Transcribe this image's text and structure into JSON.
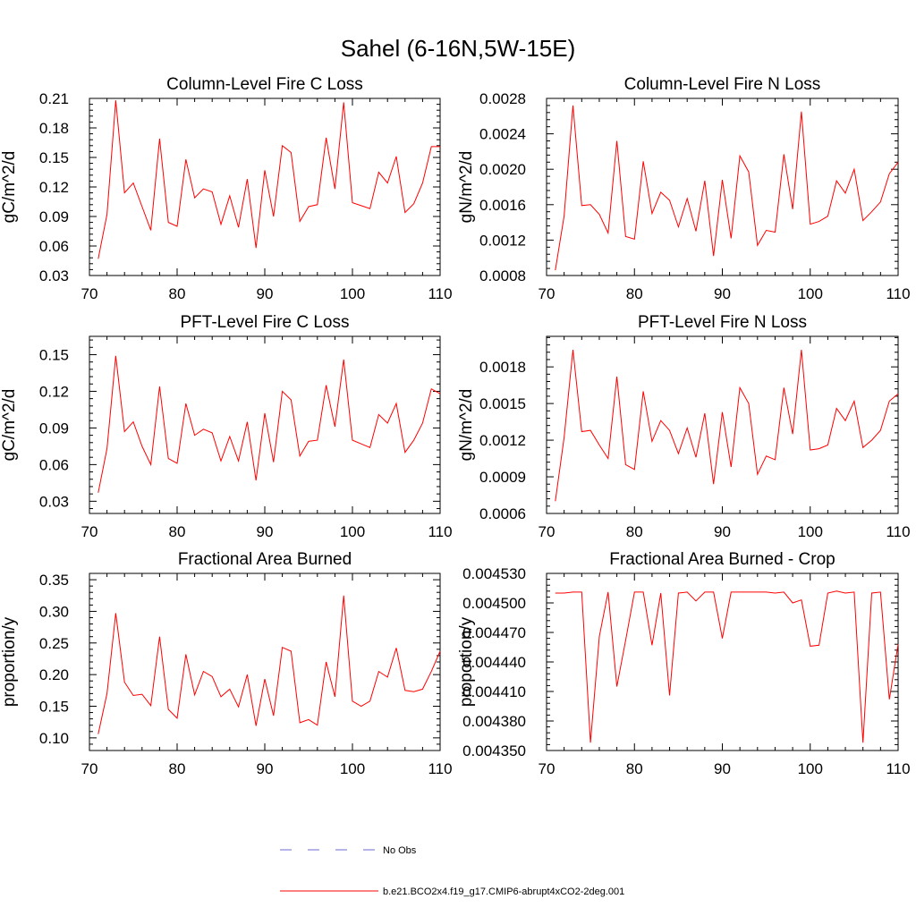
{
  "figure": {
    "title": "Sahel (6-16N,5W-15E)"
  },
  "colors": {
    "series_line": "#ff0000",
    "no_obs_line": "#6b6bd6",
    "axis": "#000000"
  },
  "legend": {
    "entries": [
      {
        "label": "No Obs",
        "style": "dashed",
        "color": "#6b6bd6"
      },
      {
        "label": "b.e21.BCO2x4.f19_g17.CMIP6-abrupt4xCO2-2deg.001",
        "style": "solid",
        "color": "#ff0000"
      }
    ]
  },
  "chart_data": [
    {
      "type": "line",
      "title": "Column-Level Fire C Loss",
      "xlabel": "",
      "ylabel": "gC/m^2/d",
      "xlim": [
        70,
        110
      ],
      "ylim": [
        0.03,
        0.21
      ],
      "xticks": [
        70,
        80,
        90,
        100,
        110
      ],
      "yticks": [
        0.03,
        0.06,
        0.09,
        0.12,
        0.15,
        0.18,
        0.21
      ],
      "ytick_labels": [
        "0.03",
        "0.06",
        "0.09",
        "0.12",
        "0.15",
        "0.18",
        "0.21"
      ],
      "x": [
        71,
        72,
        73,
        74,
        75,
        76,
        77,
        78,
        79,
        80,
        81,
        82,
        83,
        84,
        85,
        86,
        87,
        88,
        89,
        90,
        91,
        92,
        93,
        94,
        95,
        96,
        97,
        98,
        99,
        100,
        101,
        102,
        103,
        104,
        105,
        106,
        107,
        108,
        109,
        110
      ],
      "series": [
        {
          "name": "b.e21.BCO2x4.f19_g17.CMIP6-abrupt4xCO2-2deg.001",
          "values": [
            0.047,
            0.092,
            0.208,
            0.114,
            0.124,
            0.1,
            0.076,
            0.169,
            0.084,
            0.08,
            0.148,
            0.109,
            0.118,
            0.115,
            0.082,
            0.111,
            0.079,
            0.128,
            0.058,
            0.137,
            0.09,
            0.162,
            0.155,
            0.085,
            0.1,
            0.102,
            0.17,
            0.118,
            0.206,
            0.104,
            0.101,
            0.098,
            0.135,
            0.124,
            0.151,
            0.094,
            0.103,
            0.124,
            0.161,
            0.161
          ]
        }
      ]
    },
    {
      "type": "line",
      "title": "Column-Level Fire N Loss",
      "xlabel": "",
      "ylabel": "gN/m^2/d",
      "xlim": [
        70,
        110
      ],
      "ylim": [
        0.0008,
        0.0028
      ],
      "xticks": [
        70,
        80,
        90,
        100,
        110
      ],
      "yticks": [
        0.0008,
        0.0012,
        0.0016,
        0.002,
        0.0024,
        0.0028
      ],
      "ytick_labels": [
        "0.0008",
        "0.0012",
        "0.0016",
        "0.0020",
        "0.0024",
        "0.0028"
      ],
      "x": [
        71,
        72,
        73,
        74,
        75,
        76,
        77,
        78,
        79,
        80,
        81,
        82,
        83,
        84,
        85,
        86,
        87,
        88,
        89,
        90,
        91,
        92,
        93,
        94,
        95,
        96,
        97,
        98,
        99,
        100,
        101,
        102,
        103,
        104,
        105,
        106,
        107,
        108,
        109,
        110
      ],
      "series": [
        {
          "name": "b.e21.BCO2x4.f19_g17.CMIP6-abrupt4xCO2-2deg.001",
          "values": [
            0.00086,
            0.00147,
            0.00272,
            0.00159,
            0.0016,
            0.00149,
            0.00128,
            0.00232,
            0.00124,
            0.00121,
            0.00209,
            0.0015,
            0.00174,
            0.00165,
            0.00135,
            0.00167,
            0.0013,
            0.00187,
            0.00102,
            0.00188,
            0.00122,
            0.00215,
            0.00197,
            0.00114,
            0.00131,
            0.00129,
            0.00217,
            0.00155,
            0.00265,
            0.00138,
            0.00141,
            0.00147,
            0.00187,
            0.00173,
            0.002,
            0.00142,
            0.00152,
            0.00163,
            0.00195,
            0.00208
          ]
        }
      ]
    },
    {
      "type": "line",
      "title": "PFT-Level Fire C Loss",
      "xlabel": "",
      "ylabel": "gC/m^2/d",
      "xlim": [
        70,
        110
      ],
      "ylim": [
        0.02,
        0.165
      ],
      "xticks": [
        70,
        80,
        90,
        100,
        110
      ],
      "yticks": [
        0.03,
        0.06,
        0.09,
        0.12,
        0.15
      ],
      "ytick_labels": [
        "0.03",
        "0.06",
        "0.09",
        "0.12",
        "0.15"
      ],
      "x": [
        71,
        72,
        73,
        74,
        75,
        76,
        77,
        78,
        79,
        80,
        81,
        82,
        83,
        84,
        85,
        86,
        87,
        88,
        89,
        90,
        91,
        92,
        93,
        94,
        95,
        96,
        97,
        98,
        99,
        100,
        101,
        102,
        103,
        104,
        105,
        106,
        107,
        108,
        109,
        110
      ],
      "series": [
        {
          "name": "b.e21.BCO2x4.f19_g17.CMIP6-abrupt4xCO2-2deg.001",
          "values": [
            0.037,
            0.073,
            0.149,
            0.087,
            0.095,
            0.075,
            0.06,
            0.124,
            0.065,
            0.061,
            0.11,
            0.084,
            0.089,
            0.086,
            0.063,
            0.083,
            0.063,
            0.095,
            0.047,
            0.102,
            0.062,
            0.12,
            0.113,
            0.067,
            0.079,
            0.08,
            0.125,
            0.091,
            0.146,
            0.08,
            0.077,
            0.074,
            0.101,
            0.094,
            0.11,
            0.07,
            0.08,
            0.094,
            0.122,
            0.118
          ]
        }
      ]
    },
    {
      "type": "line",
      "title": "PFT-Level Fire N Loss",
      "xlabel": "",
      "ylabel": "gN/m^2/d",
      "xlim": [
        70,
        110
      ],
      "ylim": [
        0.0006,
        0.00205
      ],
      "xticks": [
        70,
        80,
        90,
        100,
        110
      ],
      "yticks": [
        0.0006,
        0.0009,
        0.0012,
        0.0015,
        0.0018
      ],
      "ytick_labels": [
        "0.0006",
        "0.0009",
        "0.0012",
        "0.0015",
        "0.0018"
      ],
      "x": [
        71,
        72,
        73,
        74,
        75,
        76,
        77,
        78,
        79,
        80,
        81,
        82,
        83,
        84,
        85,
        86,
        87,
        88,
        89,
        90,
        91,
        92,
        93,
        94,
        95,
        96,
        97,
        98,
        99,
        100,
        101,
        102,
        103,
        104,
        105,
        106,
        107,
        108,
        109,
        110
      ],
      "series": [
        {
          "name": "b.e21.BCO2x4.f19_g17.CMIP6-abrupt4xCO2-2deg.001",
          "values": [
            0.0007,
            0.00122,
            0.00194,
            0.00127,
            0.00128,
            0.00116,
            0.00105,
            0.00172,
            0.001,
            0.00096,
            0.0016,
            0.00119,
            0.00136,
            0.00128,
            0.00109,
            0.0013,
            0.00106,
            0.00142,
            0.00084,
            0.00143,
            0.00098,
            0.00163,
            0.0015,
            0.00092,
            0.00107,
            0.00104,
            0.00163,
            0.00125,
            0.00194,
            0.00112,
            0.00113,
            0.00116,
            0.00146,
            0.00136,
            0.00152,
            0.00114,
            0.0012,
            0.00128,
            0.00152,
            0.00158
          ]
        }
      ]
    },
    {
      "type": "line",
      "title": "Fractional Area Burned",
      "xlabel": "",
      "ylabel": "proportion/y",
      "xlim": [
        70,
        110
      ],
      "ylim": [
        0.08,
        0.36
      ],
      "xticks": [
        70,
        80,
        90,
        100,
        110
      ],
      "yticks": [
        0.1,
        0.15,
        0.2,
        0.25,
        0.3,
        0.35
      ],
      "ytick_labels": [
        "0.10",
        "0.15",
        "0.20",
        "0.25",
        "0.30",
        "0.35"
      ],
      "x": [
        71,
        72,
        73,
        74,
        75,
        76,
        77,
        78,
        79,
        80,
        81,
        82,
        83,
        84,
        85,
        86,
        87,
        88,
        89,
        90,
        91,
        92,
        93,
        94,
        95,
        96,
        97,
        98,
        99,
        100,
        101,
        102,
        103,
        104,
        105,
        106,
        107,
        108,
        109,
        110
      ],
      "series": [
        {
          "name": "b.e21.BCO2x4.f19_g17.CMIP6-abrupt4xCO2-2deg.001",
          "values": [
            0.106,
            0.17,
            0.297,
            0.188,
            0.167,
            0.169,
            0.151,
            0.26,
            0.145,
            0.131,
            0.232,
            0.168,
            0.205,
            0.197,
            0.165,
            0.177,
            0.149,
            0.2,
            0.119,
            0.193,
            0.135,
            0.243,
            0.237,
            0.124,
            0.129,
            0.12,
            0.22,
            0.165,
            0.325,
            0.158,
            0.15,
            0.158,
            0.205,
            0.196,
            0.242,
            0.175,
            0.173,
            0.177,
            0.205,
            0.237
          ]
        }
      ]
    },
    {
      "type": "line",
      "title": "Fractional Area Burned - Crop",
      "xlabel": "",
      "ylabel": "proportion/y",
      "xlim": [
        70,
        110
      ],
      "ylim": [
        0.00435,
        0.00453
      ],
      "xticks": [
        70,
        80,
        90,
        100,
        110
      ],
      "yticks": [
        0.00435,
        0.00438,
        0.00441,
        0.00444,
        0.00447,
        0.0045,
        0.00453
      ],
      "ytick_labels": [
        "0.004350",
        "0.004380",
        "0.004410",
        "0.004440",
        "0.004470",
        "0.004500",
        "0.004530"
      ],
      "x": [
        71,
        72,
        73,
        74,
        75,
        76,
        77,
        78,
        79,
        80,
        81,
        82,
        83,
        84,
        85,
        86,
        87,
        88,
        89,
        90,
        91,
        92,
        93,
        94,
        95,
        96,
        97,
        98,
        99,
        100,
        101,
        102,
        103,
        104,
        105,
        106,
        107,
        108,
        109,
        110
      ],
      "series": [
        {
          "name": "b.e21.BCO2x4.f19_g17.CMIP6-abrupt4xCO2-2deg.001",
          "values": [
            0.00451,
            0.00451,
            0.004511,
            0.004511,
            0.004358,
            0.004466,
            0.004511,
            0.004415,
            0.004462,
            0.004511,
            0.004511,
            0.004457,
            0.00451,
            0.004406,
            0.00451,
            0.004511,
            0.004502,
            0.004511,
            0.004511,
            0.004464,
            0.004511,
            0.004511,
            0.004511,
            0.004511,
            0.004511,
            0.00451,
            0.004511,
            0.0045,
            0.004503,
            0.004456,
            0.004457,
            0.00451,
            0.004512,
            0.00451,
            0.004511,
            0.004358,
            0.00451,
            0.004511,
            0.004402,
            0.004458
          ]
        }
      ]
    }
  ]
}
